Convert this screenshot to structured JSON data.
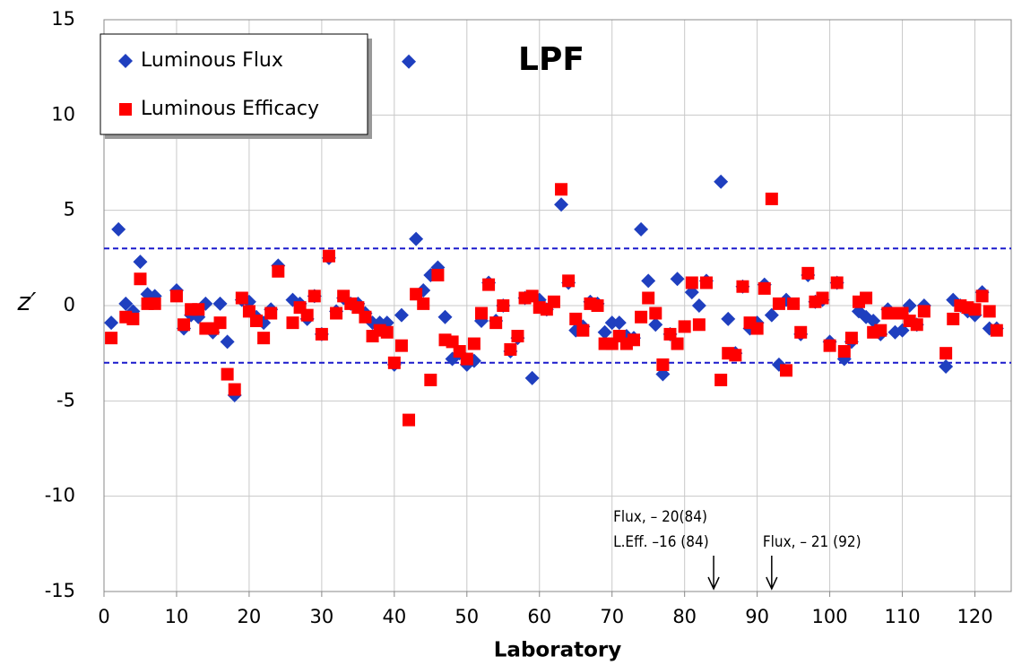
{
  "chart_data": {
    "type": "scatter",
    "title": "LPF",
    "x_label": "Laboratory",
    "y_label": "z′",
    "xlim": [
      0,
      125
    ],
    "xticks": [
      0,
      10,
      20,
      30,
      40,
      50,
      60,
      70,
      80,
      90,
      100,
      110,
      120
    ],
    "ylim": [
      -15,
      15
    ],
    "yticks": [
      -15,
      -10,
      -5,
      0,
      5,
      10,
      15
    ],
    "grid": true,
    "hlines": [
      3,
      -3
    ],
    "hline_color": "#1a1acc",
    "legend": "upper left",
    "series": [
      {
        "name": "Luminous Flux",
        "color": "#1f3fbf",
        "marker": "diamond",
        "x": [
          1,
          2,
          3,
          4,
          5,
          6,
          7,
          10,
          11,
          12,
          13,
          14,
          15,
          16,
          17,
          18,
          19,
          20,
          21,
          22,
          23,
          24,
          26,
          27,
          28,
          29,
          30,
          31,
          32,
          33,
          34,
          35,
          36,
          37,
          38,
          39,
          40,
          41,
          42,
          43,
          44,
          45,
          46,
          47,
          48,
          49,
          50,
          51,
          52,
          53,
          54,
          55,
          56,
          57,
          58,
          59,
          60,
          61,
          63,
          64,
          65,
          66,
          67,
          68,
          69,
          70,
          71,
          72,
          73,
          74,
          75,
          76,
          77,
          78,
          79,
          81,
          82,
          83,
          85,
          86,
          87,
          88,
          89,
          90,
          91,
          92,
          93,
          94,
          96,
          97,
          98,
          99,
          100,
          101,
          102,
          103,
          104,
          105,
          106,
          107,
          108,
          109,
          110,
          111,
          112,
          113,
          116,
          117,
          118,
          119,
          120,
          121,
          122,
          123
        ],
        "y": [
          -0.9,
          4.0,
          0.1,
          -0.3,
          2.3,
          0.6,
          0.5,
          0.8,
          -1.2,
          -0.5,
          -0.6,
          0.1,
          -1.4,
          0.1,
          -1.9,
          -4.7,
          0.3,
          0.2,
          -0.6,
          -0.9,
          -0.2,
          2.1,
          0.3,
          0.1,
          -0.7,
          0.5,
          -1.5,
          2.5,
          -0.3,
          0.4,
          0.1,
          0.1,
          -0.4,
          -0.9,
          -0.9,
          -0.9,
          -3.1,
          -0.5,
          12.8,
          3.5,
          0.8,
          1.6,
          2.0,
          -0.6,
          -2.8,
          -2.5,
          -3.1,
          -2.9,
          -0.8,
          1.2,
          -0.8,
          0.0,
          -2.4,
          -1.7,
          0.4,
          -3.8,
          0.3,
          -0.2,
          5.3,
          1.2,
          -1.3,
          -1.1,
          0.2,
          0.1,
          -1.4,
          -0.9,
          -0.9,
          -1.6,
          -1.7,
          4.0,
          1.3,
          -1.0,
          -3.6,
          -1.5,
          1.4,
          0.7,
          0.0,
          1.3,
          6.5,
          -0.7,
          -2.5,
          1.0,
          -1.2,
          -0.9,
          1.1,
          -0.5,
          -3.1,
          0.3,
          -1.5,
          1.6,
          0.2,
          0.3,
          -1.9,
          1.2,
          -2.8,
          -1.9,
          -0.3,
          -0.6,
          -0.8,
          -1.5,
          -0.2,
          -1.4,
          -1.3,
          0.0,
          -1.0,
          0.0,
          -3.2,
          0.3,
          0.0,
          -0.3,
          -0.5,
          0.7,
          -1.2,
          -1.2
        ]
      },
      {
        "name": "Luminous Efficacy",
        "color": "#ff0000",
        "marker": "square",
        "x": [
          1,
          3,
          4,
          5,
          6,
          7,
          10,
          11,
          12,
          13,
          14,
          15,
          16,
          17,
          18,
          19,
          20,
          21,
          22,
          23,
          24,
          26,
          27,
          28,
          29,
          30,
          31,
          32,
          33,
          34,
          35,
          36,
          37,
          38,
          39,
          40,
          41,
          42,
          43,
          44,
          45,
          46,
          47,
          48,
          49,
          50,
          51,
          52,
          53,
          54,
          55,
          56,
          57,
          58,
          59,
          60,
          61,
          62,
          63,
          64,
          65,
          66,
          67,
          68,
          69,
          70,
          71,
          72,
          73,
          74,
          75,
          76,
          77,
          78,
          79,
          80,
          81,
          82,
          83,
          85,
          86,
          87,
          88,
          89,
          90,
          91,
          92,
          93,
          94,
          95,
          96,
          97,
          98,
          99,
          100,
          101,
          102,
          103,
          104,
          105,
          106,
          107,
          108,
          109,
          110,
          111,
          112,
          113,
          116,
          117,
          118,
          119,
          120,
          121,
          122,
          123
        ],
        "y": [
          -1.7,
          -0.6,
          -0.7,
          1.4,
          0.1,
          0.1,
          0.5,
          -1.0,
          -0.2,
          -0.2,
          -1.2,
          -1.2,
          -0.9,
          -3.6,
          -4.4,
          0.4,
          -0.3,
          -0.8,
          -1.7,
          -0.4,
          1.8,
          -0.9,
          -0.1,
          -0.5,
          0.5,
          -1.5,
          2.6,
          -0.4,
          0.5,
          0.1,
          -0.1,
          -0.6,
          -1.6,
          -1.3,
          -1.4,
          -3.0,
          -2.1,
          -6.0,
          0.6,
          0.1,
          -3.9,
          1.6,
          -1.8,
          -1.9,
          -2.4,
          -2.8,
          -2.0,
          -0.4,
          1.1,
          -0.9,
          0.0,
          -2.3,
          -1.6,
          0.4,
          0.5,
          -0.1,
          -0.2,
          0.2,
          6.1,
          1.3,
          -0.7,
          -1.3,
          0.1,
          0.0,
          -2.0,
          -2.0,
          -1.6,
          -2.0,
          -1.8,
          -0.6,
          0.4,
          -0.4,
          -3.1,
          -1.5,
          -2.0,
          -1.1,
          1.2,
          -1.0,
          1.2,
          -3.9,
          -2.5,
          -2.6,
          1.0,
          -0.9,
          -1.2,
          0.9,
          5.6,
          0.1,
          -3.4,
          0.1,
          -1.4,
          1.7,
          0.2,
          0.4,
          -2.1,
          1.2,
          -2.4,
          -1.7,
          0.2,
          0.4,
          -1.4,
          -1.3,
          -0.4,
          -0.4,
          -0.4,
          -0.8,
          -1.0,
          -0.3,
          -2.5,
          -0.7,
          0.0,
          -0.1,
          -0.2,
          0.5,
          -0.3,
          -1.3
        ]
      }
    ],
    "annotations": [
      {
        "lines": [
          "Flux, – 20(84)",
          "L.Eff. –16 (84)"
        ],
        "x": 84
      },
      {
        "lines": [
          "Flux, – 21 (92)"
        ],
        "x": 92
      }
    ]
  }
}
